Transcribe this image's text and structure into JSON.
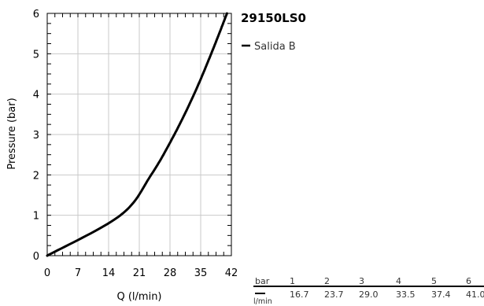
{
  "chart_data": {
    "type": "line",
    "title": "29150LS0",
    "xlabel": "Q (l/min)",
    "ylabel": "Pressure (bar)",
    "xlim": [
      0,
      42
    ],
    "ylim": [
      0,
      6
    ],
    "x_ticks": [
      0,
      7,
      14,
      21,
      28,
      35,
      42
    ],
    "y_ticks": [
      0,
      1,
      2,
      3,
      4,
      5,
      6
    ],
    "grid": true,
    "legend_position": "right",
    "series": [
      {
        "name": "Salida B",
        "color": "#000000",
        "points": [
          {
            "x": 0,
            "y": 0
          },
          {
            "x": 16.7,
            "y": 1
          },
          {
            "x": 23.7,
            "y": 2
          },
          {
            "x": 29.0,
            "y": 3
          },
          {
            "x": 33.5,
            "y": 4
          },
          {
            "x": 37.4,
            "y": 5
          },
          {
            "x": 41.0,
            "y": 6
          }
        ]
      }
    ],
    "table": {
      "row_label": "bar",
      "unit_label": "l/min",
      "columns": [
        "1",
        "2",
        "3",
        "4",
        "5",
        "6"
      ],
      "values": [
        "16.7",
        "23.7",
        "29.0",
        "33.5",
        "37.4",
        "41.0"
      ]
    }
  }
}
